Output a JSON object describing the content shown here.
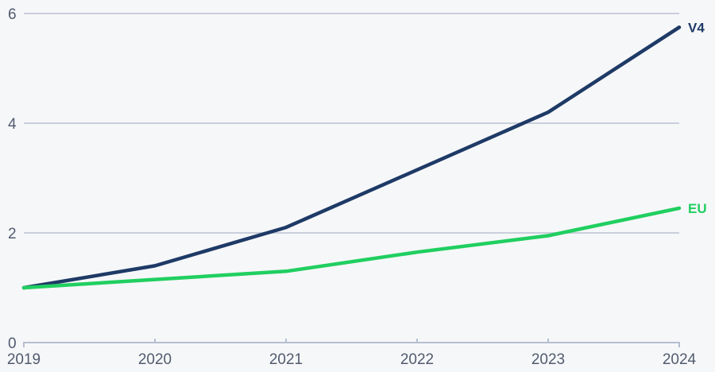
{
  "page": {
    "background_color": "#f6f7f9"
  },
  "chart_data": {
    "type": "line",
    "title": "",
    "xlabel": "",
    "ylabel": "",
    "categories": [
      "2019",
      "2020",
      "2021",
      "2022",
      "2023",
      "2024"
    ],
    "series": [
      {
        "name": "V4",
        "color": "#1e3a66",
        "values": [
          1.0,
          1.4,
          2.1,
          3.15,
          4.2,
          5.75
        ]
      },
      {
        "name": "EU",
        "color": "#20cf60",
        "values": [
          1.0,
          1.15,
          1.3,
          1.65,
          1.95,
          2.45
        ]
      }
    ],
    "ylim": [
      0,
      6
    ],
    "yticks": [
      0,
      2,
      4,
      6
    ],
    "ytick_labels": [
      "0",
      "2",
      "4",
      "6"
    ],
    "grid": true,
    "legend_position": "inline-end-labels",
    "style": {
      "grid_color": "#c9cfdb",
      "axis_color": "#b5bfd0",
      "tick_label_color": "#515b6e",
      "line_width": 4.5,
      "tick_label_size": 19,
      "end_label_size": 17
    }
  }
}
